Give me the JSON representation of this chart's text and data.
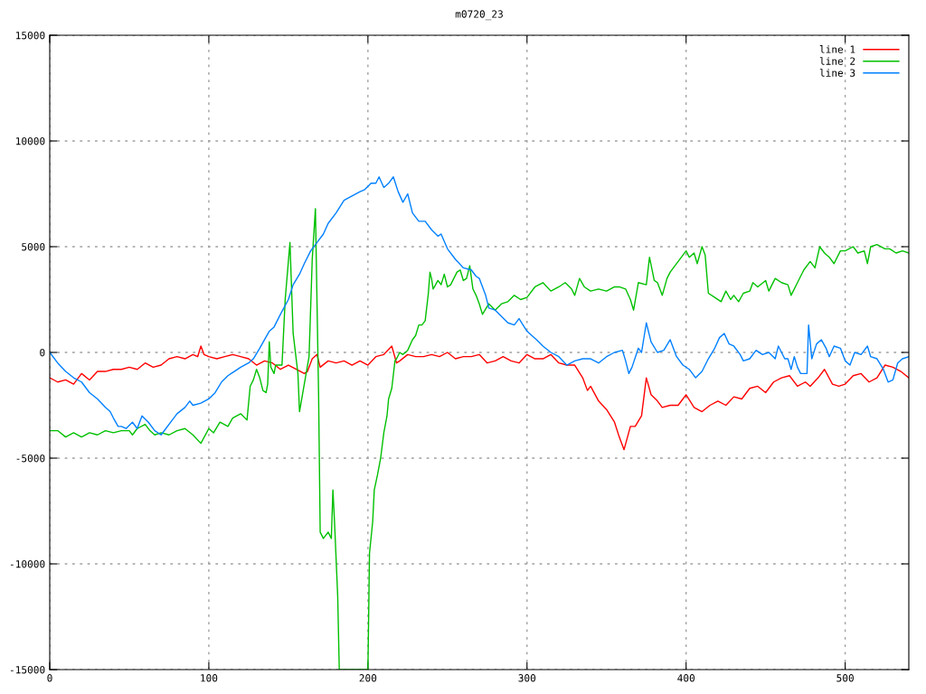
{
  "chart_data": {
    "type": "line",
    "title": "m0720_23",
    "xlim": [
      0,
      540
    ],
    "ylim": [
      -15000,
      15000
    ],
    "xticks": [
      0,
      100,
      200,
      300,
      400,
      500
    ],
    "yticks": [
      -15000,
      -10000,
      -5000,
      0,
      5000,
      10000,
      15000
    ],
    "grid": true,
    "legend": "top right",
    "marker": "none",
    "line_style": "solid",
    "series": [
      {
        "name": "line 1",
        "color": "#ff0000",
        "x": [
          0,
          5,
          10,
          15,
          20,
          25,
          30,
          35,
          40,
          45,
          50,
          55,
          60,
          65,
          70,
          75,
          80,
          85,
          90,
          93,
          95,
          97,
          100,
          105,
          110,
          115,
          120,
          125,
          130,
          135,
          140,
          145,
          150,
          155,
          160,
          162,
          165,
          168,
          170,
          175,
          180,
          185,
          190,
          195,
          200,
          205,
          210,
          215,
          218,
          220,
          225,
          230,
          235,
          240,
          245,
          250,
          255,
          260,
          265,
          270,
          275,
          280,
          285,
          290,
          295,
          300,
          305,
          310,
          315,
          320,
          325,
          330,
          335,
          338,
          340,
          345,
          350,
          355,
          358,
          361,
          365,
          368,
          372,
          375,
          378,
          382,
          385,
          390,
          395,
          398,
          400,
          405,
          410,
          415,
          420,
          425,
          430,
          435,
          440,
          445,
          450,
          455,
          460,
          465,
          470,
          475,
          478,
          483,
          487,
          492,
          496,
          500,
          505,
          510,
          515,
          520,
          525,
          530,
          535,
          540
        ],
        "values": [
          -1200,
          -1400,
          -1300,
          -1500,
          -1000,
          -1300,
          -900,
          -900,
          -800,
          -800,
          -700,
          -800,
          -500,
          -700,
          -600,
          -300,
          -200,
          -300,
          -100,
          -200,
          300,
          -100,
          -200,
          -300,
          -200,
          -100,
          -200,
          -300,
          -600,
          -400,
          -500,
          -800,
          -600,
          -800,
          -1000,
          -900,
          -300,
          -100,
          -700,
          -400,
          -500,
          -400,
          -600,
          -400,
          -600,
          -200,
          -100,
          300,
          -500,
          -400,
          -100,
          -200,
          -200,
          -100,
          -200,
          0,
          -300,
          -200,
          -200,
          -100,
          -500,
          -400,
          -200,
          -400,
          -500,
          -100,
          -300,
          -300,
          -100,
          -500,
          -600,
          -600,
          -1200,
          -1800,
          -1600,
          -2300,
          -2700,
          -3300,
          -4000,
          -4600,
          -3500,
          -3500,
          -3000,
          -1200,
          -2000,
          -2300,
          -2600,
          -2500,
          -2500,
          -2200,
          -2000,
          -2600,
          -2800,
          -2500,
          -2300,
          -2500,
          -2100,
          -2200,
          -1700,
          -1600,
          -1900,
          -1400,
          -1200,
          -1100,
          -1600,
          -1400,
          -1600,
          -1200,
          -800,
          -1500,
          -1600,
          -1500,
          -1100,
          -1000,
          -1400,
          -1200,
          -600,
          -700,
          -900,
          -1200
        ]
      },
      {
        "name": "line 2",
        "color": "#00c000",
        "x": [
          0,
          5,
          10,
          15,
          20,
          25,
          30,
          35,
          40,
          45,
          50,
          52,
          55,
          60,
          63,
          66,
          70,
          75,
          80,
          85,
          90,
          95,
          100,
          103,
          107,
          112,
          115,
          120,
          124,
          126,
          128,
          130,
          132,
          134,
          136,
          137,
          138,
          139,
          141,
          142,
          146,
          148,
          150,
          151,
          153,
          156,
          157,
          160,
          163,
          165,
          167,
          169,
          170,
          172,
          175,
          177,
          178,
          179,
          181,
          182,
          200,
          201,
          203,
          204,
          206,
          208,
          210,
          212,
          213,
          215,
          217,
          218,
          220,
          222,
          225,
          228,
          230,
          232,
          234,
          236,
          238,
          239,
          240,
          241,
          244,
          246,
          248,
          250,
          252,
          256,
          258,
          260,
          262,
          264,
          266,
          268,
          270,
          272,
          276,
          280,
          284,
          288,
          292,
          296,
          300,
          305,
          310,
          315,
          320,
          324,
          328,
          330,
          333,
          336,
          340,
          345,
          350,
          355,
          358,
          362,
          365,
          367,
          370,
          375,
          377,
          380,
          382,
          385,
          388,
          390,
          395,
          400,
          402,
          405,
          407,
          410,
          412,
          414,
          418,
          422,
          425,
          428,
          430,
          433,
          436,
          440,
          442,
          445,
          450,
          452,
          456,
          460,
          464,
          466,
          470,
          474,
          478,
          481,
          484,
          487,
          490,
          493,
          497,
          500,
          505,
          508,
          512,
          514,
          516,
          520,
          525,
          528,
          532,
          536,
          540
        ],
        "values": [
          -3700,
          -3700,
          -4000,
          -3800,
          -4000,
          -3800,
          -3900,
          -3700,
          -3800,
          -3700,
          -3700,
          -3900,
          -3600,
          -3400,
          -3700,
          -3900,
          -3800,
          -3900,
          -3700,
          -3600,
          -3900,
          -4300,
          -3600,
          -3800,
          -3300,
          -3500,
          -3100,
          -2900,
          -3200,
          -1600,
          -1300,
          -800,
          -1200,
          -1800,
          -1900,
          -1500,
          500,
          -700,
          -1000,
          -600,
          -600,
          2500,
          4300,
          5200,
          900,
          -1000,
          -2800,
          -1500,
          -200,
          4400,
          6800,
          -2000,
          -8500,
          -8800,
          -8500,
          -8800,
          -6500,
          -8000,
          -11500,
          -15000,
          -15000,
          -9500,
          -8000,
          -6500,
          -5800,
          -5000,
          -3800,
          -3000,
          -2200,
          -1700,
          -400,
          -300,
          0,
          -100,
          100,
          600,
          800,
          1300,
          1300,
          1500,
          2800,
          3800,
          3500,
          3000,
          3400,
          3200,
          3700,
          3100,
          3200,
          3800,
          3900,
          3400,
          3500,
          4100,
          3000,
          2700,
          2300,
          1800,
          2300,
          2000,
          2300,
          2400,
          2700,
          2500,
          2600,
          3100,
          3300,
          2900,
          3100,
          3300,
          3000,
          2700,
          3500,
          3100,
          2900,
          3000,
          2900,
          3100,
          3100,
          3000,
          2500,
          2000,
          3300,
          3200,
          4500,
          3400,
          3300,
          2700,
          3500,
          3800,
          4300,
          4800,
          4500,
          4700,
          4200,
          5000,
          4600,
          2800,
          2600,
          2400,
          2900,
          2500,
          2700,
          2400,
          2800,
          2900,
          3300,
          3100,
          3400,
          2900,
          3500,
          3300,
          3200,
          2700,
          3300,
          3900,
          4300,
          4000,
          5000,
          4700,
          4500,
          4200,
          4800,
          4800,
          5000,
          4700,
          4800,
          4200,
          5000,
          5100,
          4900,
          4900,
          4700,
          4800,
          4700
        ]
      },
      {
        "name": "line 3",
        "color": "#0080ff",
        "x": [
          0,
          5,
          10,
          15,
          20,
          25,
          30,
          35,
          38,
          40,
          43,
          45,
          48,
          52,
          55,
          58,
          62,
          66,
          70,
          73,
          77,
          80,
          85,
          88,
          90,
          95,
          100,
          104,
          108,
          112,
          116,
          120,
          125,
          128,
          132,
          135,
          138,
          141,
          145,
          150,
          153,
          157,
          160,
          164,
          168,
          172,
          175,
          180,
          185,
          190,
          195,
          198,
          202,
          205,
          207,
          210,
          213,
          216,
          219,
          222,
          225,
          228,
          232,
          236,
          240,
          244,
          246,
          250,
          255,
          260,
          265,
          268,
          270,
          274,
          276,
          280,
          284,
          288,
          292,
          295,
          300,
          306,
          310,
          315,
          320,
          325,
          330,
          335,
          340,
          345,
          350,
          355,
          360,
          362,
          364,
          366,
          370,
          372,
          375,
          378,
          382,
          386,
          390,
          394,
          398,
          402,
          406,
          410,
          414,
          418,
          421,
          424,
          427,
          430,
          434,
          436,
          440,
          444,
          448,
          452,
          456,
          458,
          462,
          464,
          466,
          468,
          470,
          472,
          474,
          476,
          477,
          479,
          482,
          485,
          488,
          490,
          493,
          497,
          500,
          503,
          506,
          510,
          514,
          516,
          520,
          524,
          527,
          530,
          533,
          536,
          540
        ],
        "values": [
          0,
          -500,
          -900,
          -1200,
          -1400,
          -1900,
          -2200,
          -2600,
          -2800,
          -3100,
          -3500,
          -3500,
          -3600,
          -3300,
          -3600,
          -3000,
          -3300,
          -3700,
          -3900,
          -3600,
          -3200,
          -2900,
          -2600,
          -2300,
          -2500,
          -2400,
          -2200,
          -1900,
          -1400,
          -1100,
          -900,
          -700,
          -500,
          -300,
          200,
          600,
          1000,
          1200,
          1800,
          2500,
          3200,
          3700,
          4200,
          4800,
          5200,
          5600,
          6100,
          6600,
          7200,
          7400,
          7600,
          7700,
          8000,
          8000,
          8300,
          7800,
          8000,
          8300,
          7600,
          7100,
          7500,
          6600,
          6200,
          6200,
          5800,
          5500,
          5600,
          4900,
          4400,
          4000,
          3900,
          3600,
          3500,
          2700,
          2100,
          2000,
          1700,
          1400,
          1300,
          1600,
          1000,
          600,
          300,
          0,
          -200,
          -600,
          -400,
          -300,
          -300,
          -500,
          -200,
          0,
          100,
          -400,
          -1000,
          -700,
          200,
          0,
          1400,
          500,
          0,
          100,
          600,
          -200,
          -600,
          -800,
          -1200,
          -900,
          -300,
          200,
          700,
          900,
          400,
          300,
          -100,
          -400,
          -300,
          100,
          -100,
          0,
          -300,
          300,
          -300,
          -300,
          -800,
          -200,
          -700,
          -1000,
          -1000,
          -1000,
          1300,
          -300,
          400,
          600,
          200,
          -200,
          300,
          200,
          -400,
          -600,
          0,
          -100,
          300,
          -200,
          -300,
          -800,
          -1400,
          -1300,
          -500,
          -300,
          -200
        ]
      }
    ]
  }
}
